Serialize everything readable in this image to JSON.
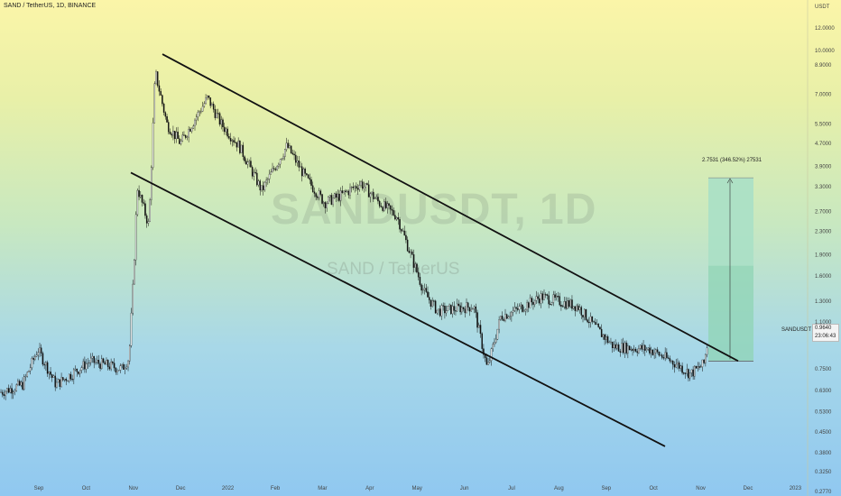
{
  "header": {
    "title": "SAND / TetherUS, 1D, BINANCE"
  },
  "watermark": {
    "main": "SANDUSDT, 1D",
    "sub": "SAND / TetherUS"
  },
  "price_axis": {
    "currency": "USDT",
    "symbol_tag": "SANDUSDT",
    "last_price": "0.9640",
    "countdown": "23:06:43"
  },
  "long_position": {
    "label": "2.7531 (346.52%) 27531"
  },
  "colors": {
    "candle": "#111111",
    "trendline": "#111111",
    "profit_zone": "#8fd4b4",
    "profit_zone_upper": "#b4e4cc"
  },
  "chart_data": {
    "type": "candlestick",
    "title": "SAND / TetherUS, 1D, BINANCE",
    "x_ticks": [
      "Sep",
      "Oct",
      "Nov",
      "Dec",
      "2022",
      "Feb",
      "Mar",
      "Apr",
      "May",
      "Jun",
      "Jul",
      "Aug",
      "Sep",
      "Oct",
      "Nov",
      "Dec",
      "2023"
    ],
    "y_ticks": [
      "12.0000",
      "10.0000",
      "8.9000",
      "7.0000",
      "5.5000",
      "4.7000",
      "3.9000",
      "3.3000",
      "2.7000",
      "2.3000",
      "1.9000",
      "1.6000",
      "1.3000",
      "1.1000",
      "0.7500",
      "0.6300",
      "0.5300",
      "0.4500",
      "0.3800",
      "0.3250",
      "0.2770"
    ],
    "y_scale": "log",
    "ylim": [
      0.277,
      14.0
    ],
    "price_path": [
      [
        "Sep",
        0.62
      ],
      [
        "mid-Sep",
        0.66
      ],
      [
        "late-Sep",
        0.88
      ],
      [
        "early-Oct",
        0.66
      ],
      [
        "mid-Oct",
        0.8
      ],
      [
        "late-Oct",
        0.75
      ],
      [
        "early-Nov",
        0.82
      ],
      [
        "Nov",
        1.6
      ],
      [
        "mid-Nov",
        3.3
      ],
      [
        "late-Nov",
        2.4
      ],
      [
        "Nov 25",
        8.4
      ],
      [
        "early-Dec",
        5.5
      ],
      [
        "mid-Dec",
        4.7
      ],
      [
        "late-Dec",
        6.8
      ],
      [
        "early-Jan",
        5.5
      ],
      [
        "mid-Jan",
        4.6
      ],
      [
        "late-Jan",
        3.2
      ],
      [
        "early-Feb",
        4.6
      ],
      [
        "mid-Feb",
        3.5
      ],
      [
        "early-Mar",
        2.9
      ],
      [
        "mid-Mar",
        3.1
      ],
      [
        "early-Apr",
        3.4
      ],
      [
        "mid-Apr",
        2.9
      ],
      [
        "late-Apr",
        2.6
      ],
      [
        "early-May",
        1.4
      ],
      [
        "mid-May",
        1.2
      ],
      [
        "late-May",
        1.25
      ],
      [
        "mid-Jun",
        0.75
      ],
      [
        "late-Jun",
        1.15
      ],
      [
        "early-Jul",
        1.2
      ],
      [
        "mid-Jul",
        1.35
      ],
      [
        "Aug",
        1.25
      ],
      [
        "mid-Aug",
        1.05
      ],
      [
        "early-Sep",
        0.9
      ],
      [
        "mid-Sep",
        0.88
      ],
      [
        "Oct",
        0.78
      ],
      [
        "mid-Oct",
        0.72
      ],
      [
        "late-Oct",
        0.78
      ],
      [
        "Nov",
        0.964
      ]
    ],
    "trendlines": [
      {
        "name": "upper channel",
        "from": [
          "late-Oct 2021",
          9.7
        ],
        "to": [
          "Nov 2022",
          0.8
        ]
      },
      {
        "name": "lower channel",
        "from": [
          "mid-Oct 2021",
          3.7
        ],
        "to": [
          "Oct 2022",
          0.4
        ]
      }
    ],
    "long_position": {
      "entry": 0.8,
      "target": 3.55,
      "gain_pct": 346.52
    },
    "grid": false
  }
}
